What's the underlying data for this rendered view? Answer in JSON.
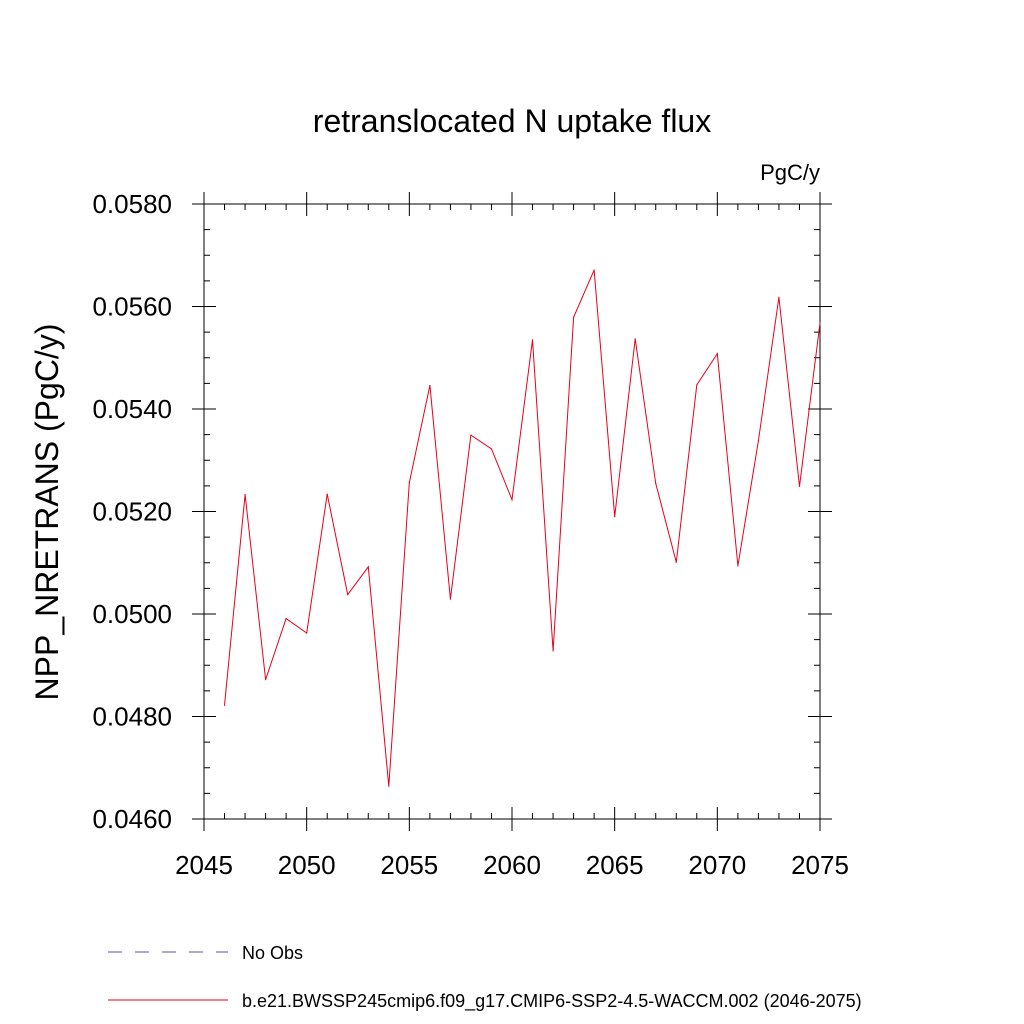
{
  "chart_data": {
    "type": "line",
    "title": "retranslocated N uptake flux",
    "units_label": "PgC/y",
    "ylabel": "NPP_NRETRANS  (PgC/y)",
    "xlabel": "",
    "xlim": [
      2045,
      2075
    ],
    "ylim": [
      0.046,
      0.058
    ],
    "x_ticks": [
      2045,
      2050,
      2055,
      2060,
      2065,
      2070,
      2075
    ],
    "x_tick_labels": [
      "2045",
      "2050",
      "2055",
      "2060",
      "2065",
      "2070",
      "2075"
    ],
    "y_ticks": [
      0.046,
      0.048,
      0.05,
      0.052,
      0.054,
      0.056,
      0.058
    ],
    "y_tick_labels": [
      "0.0460",
      "0.0480",
      "0.0500",
      "0.0520",
      "0.0540",
      "0.0560",
      "0.0580"
    ],
    "grid": false,
    "legend_position": "bottom",
    "legend": [
      {
        "label": "No Obs",
        "color": "#5b4fa8",
        "style": "dashed"
      },
      {
        "label": "b.e21.BWSSP245cmip6.f09_g17.CMIP6-SSP2-4.5-WACCM.002 (2046-2075)",
        "color": "#e8001c",
        "style": "solid"
      }
    ],
    "series": [
      {
        "color": "#e8001c",
        "x": [
          2046,
          2047,
          2048,
          2049,
          2050,
          2051,
          2052,
          2053,
          2054,
          2055,
          2056,
          2057,
          2058,
          2059,
          2060,
          2061,
          2062,
          2063,
          2064,
          2065,
          2066,
          2067,
          2068,
          2069,
          2070,
          2071,
          2072,
          2073,
          2074,
          2075
        ],
        "values": [
          0.04822,
          0.05233,
          0.04872,
          0.04991,
          0.04963,
          0.05234,
          0.05038,
          0.05092,
          0.04664,
          0.05256,
          0.05446,
          0.05029,
          0.05349,
          0.05322,
          0.05223,
          0.05535,
          0.04928,
          0.05579,
          0.05671,
          0.0519,
          0.05537,
          0.05255,
          0.05101,
          0.05447,
          0.05508,
          0.05094,
          0.05338,
          0.05618,
          0.05249,
          0.05568
        ]
      }
    ]
  }
}
